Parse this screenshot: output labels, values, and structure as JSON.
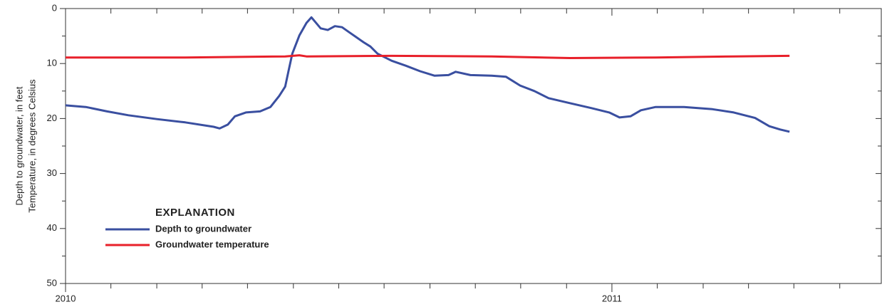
{
  "chart_data": {
    "type": "line",
    "y_label_lines": [
      "Depth to groundwater, in feet",
      "Temperature, in degrees Celsius"
    ],
    "legend_title": "EXPLANATION",
    "xlim": [
      2010,
      2011.493
    ],
    "xticks": [
      2010,
      2011
    ],
    "x_minor_ticks": [
      2010.083,
      2010.167,
      2010.25,
      2010.333,
      2010.417,
      2010.5,
      2010.583,
      2010.667,
      2010.75,
      2010.833,
      2010.917,
      2011.083,
      2011.167,
      2011.25,
      2011.333,
      2011.417
    ],
    "ylim": [
      0,
      50
    ],
    "y_inverted": true,
    "yticks": [
      0,
      10,
      20,
      30,
      40,
      50
    ],
    "y_minor_ticks": [
      5,
      15,
      25,
      35,
      45
    ],
    "series": [
      {
        "name": "Depth to groundwater",
        "color": "#3a4fa0",
        "x": [
          2010.0,
          2010.037,
          2010.076,
          2010.115,
          2010.167,
          2010.219,
          2010.271,
          2010.282,
          2010.297,
          2010.31,
          2010.33,
          2010.356,
          2010.375,
          2010.391,
          2010.402,
          2010.408,
          2010.415,
          2010.428,
          2010.441,
          2010.45,
          2010.456,
          2010.467,
          2010.48,
          2010.493,
          2010.506,
          2010.519,
          2010.532,
          2010.545,
          2010.558,
          2010.571,
          2010.597,
          2010.623,
          2010.649,
          2010.675,
          2010.701,
          2010.714,
          2010.741,
          2010.78,
          2010.806,
          2010.832,
          2010.858,
          2010.884,
          2010.923,
          2010.962,
          2010.995,
          2011.014,
          2011.034,
          2011.053,
          2011.08,
          2011.132,
          2011.184,
          2011.223,
          2011.262,
          2011.288,
          2011.308,
          2011.325
        ],
        "values": [
          17.6,
          17.9,
          18.7,
          19.4,
          20.1,
          20.7,
          21.5,
          21.8,
          21.1,
          19.6,
          18.9,
          18.7,
          17.9,
          15.9,
          14.2,
          11.4,
          8.2,
          4.9,
          2.6,
          1.6,
          2.3,
          3.6,
          3.9,
          3.2,
          3.4,
          4.3,
          5.2,
          6.1,
          6.9,
          8.2,
          9.5,
          10.4,
          11.4,
          12.2,
          12.1,
          11.5,
          12.1,
          12.2,
          12.4,
          14.0,
          15.0,
          16.3,
          17.2,
          18.1,
          18.9,
          19.8,
          19.6,
          18.5,
          17.9,
          17.9,
          18.3,
          18.9,
          19.9,
          21.4,
          22.0,
          22.4
        ]
      },
      {
        "name": "Groundwater temperature",
        "color": "#e8202a",
        "x": [
          2010.0,
          2010.219,
          2010.402,
          2010.428,
          2010.441,
          2010.597,
          2010.78,
          2010.923,
          2011.08,
          2011.223,
          2011.325
        ],
        "values": [
          8.9,
          8.9,
          8.7,
          8.5,
          8.7,
          8.6,
          8.7,
          9.0,
          8.9,
          8.7,
          8.6
        ]
      }
    ]
  }
}
